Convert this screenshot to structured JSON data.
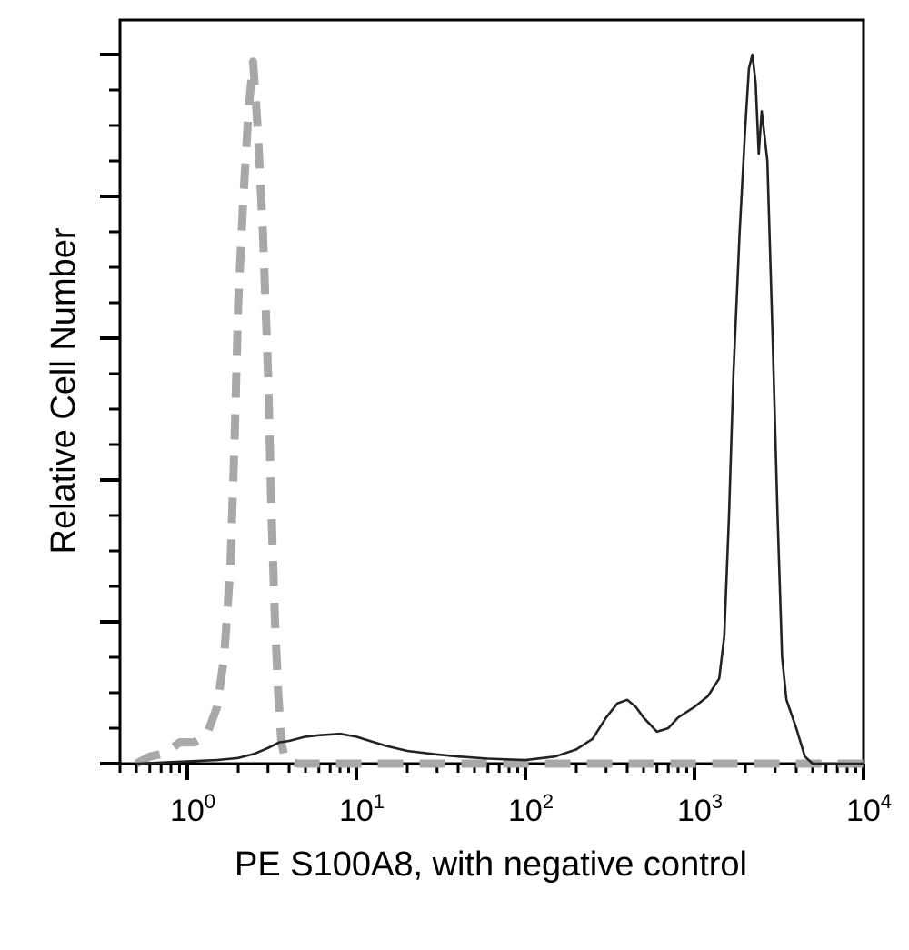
{
  "chart_data": {
    "type": "line",
    "title": "",
    "xlabel": "PE S100A8, with negative control",
    "ylabel": "Relative Cell Number",
    "x_scale": "log",
    "xlim": [
      0.4,
      10000
    ],
    "ylim": [
      0,
      100
    ],
    "grid": false,
    "x_ticks": [
      {
        "value": 1,
        "base": "10",
        "exp": "0"
      },
      {
        "value": 10,
        "base": "10",
        "exp": "1"
      },
      {
        "value": 100,
        "base": "10",
        "exp": "2"
      },
      {
        "value": 1000,
        "base": "10",
        "exp": "3"
      },
      {
        "value": 10000,
        "base": "10",
        "exp": "4"
      }
    ],
    "series": [
      {
        "style": "dashed",
        "color": "#a8a8a8",
        "points": [
          [
            0.5,
            0
          ],
          [
            0.6,
            1
          ],
          [
            0.75,
            1.5
          ],
          [
            0.9,
            3
          ],
          [
            1.1,
            3
          ],
          [
            1.3,
            4
          ],
          [
            1.5,
            8
          ],
          [
            1.65,
            15
          ],
          [
            1.8,
            28
          ],
          [
            1.9,
            45
          ],
          [
            2.0,
            65
          ],
          [
            2.15,
            80
          ],
          [
            2.3,
            92
          ],
          [
            2.45,
            99
          ],
          [
            2.6,
            90
          ],
          [
            2.8,
            75
          ],
          [
            3.0,
            55
          ],
          [
            3.15,
            35
          ],
          [
            3.3,
            20
          ],
          [
            3.45,
            10
          ],
          [
            3.6,
            3
          ],
          [
            3.8,
            0.5
          ],
          [
            4.5,
            0
          ],
          [
            100,
            0
          ],
          [
            10000,
            0
          ]
        ]
      },
      {
        "style": "solid",
        "color": "#222222",
        "points": [
          [
            0.5,
            0
          ],
          [
            1.5,
            0.5
          ],
          [
            2.0,
            0.8
          ],
          [
            2.5,
            1.4
          ],
          [
            3.0,
            2.2
          ],
          [
            3.5,
            3.0
          ],
          [
            4.0,
            3.2
          ],
          [
            5.0,
            3.8
          ],
          [
            6.0,
            4.0
          ],
          [
            8.0,
            4.2
          ],
          [
            10.0,
            3.8
          ],
          [
            12.0,
            3.2
          ],
          [
            15.0,
            2.5
          ],
          [
            20.0,
            1.8
          ],
          [
            30.0,
            1.3
          ],
          [
            40.0,
            1.0
          ],
          [
            60.0,
            0.7
          ],
          [
            100.0,
            0.5
          ],
          [
            150.0,
            1.0
          ],
          [
            200.0,
            2.0
          ],
          [
            250.0,
            3.5
          ],
          [
            300.0,
            6.5
          ],
          [
            350.0,
            8.5
          ],
          [
            400.0,
            9.0
          ],
          [
            450.0,
            8.0
          ],
          [
            500.0,
            6.5
          ],
          [
            600.0,
            4.5
          ],
          [
            700.0,
            5.0
          ],
          [
            800.0,
            6.5
          ],
          [
            1000.0,
            8.0
          ],
          [
            1200.0,
            9.5
          ],
          [
            1400.0,
            12.0
          ],
          [
            1500.0,
            18.0
          ],
          [
            1600.0,
            35.0
          ],
          [
            1700.0,
            55.0
          ],
          [
            1850.0,
            75.0
          ],
          [
            2000.0,
            90.0
          ],
          [
            2100.0,
            98.0
          ],
          [
            2200.0,
            100.0
          ],
          [
            2300.0,
            96.0
          ],
          [
            2400.0,
            86.0
          ],
          [
            2500.0,
            92.0
          ],
          [
            2700.0,
            85.0
          ],
          [
            2900.0,
            60.0
          ],
          [
            3100.0,
            35.0
          ],
          [
            3300.0,
            15.0
          ],
          [
            3500.0,
            9.0
          ],
          [
            4000.0,
            5.0
          ],
          [
            4500.0,
            1.0
          ],
          [
            5000.0,
            0.0
          ],
          [
            10000.0,
            0.0
          ]
        ]
      }
    ]
  }
}
